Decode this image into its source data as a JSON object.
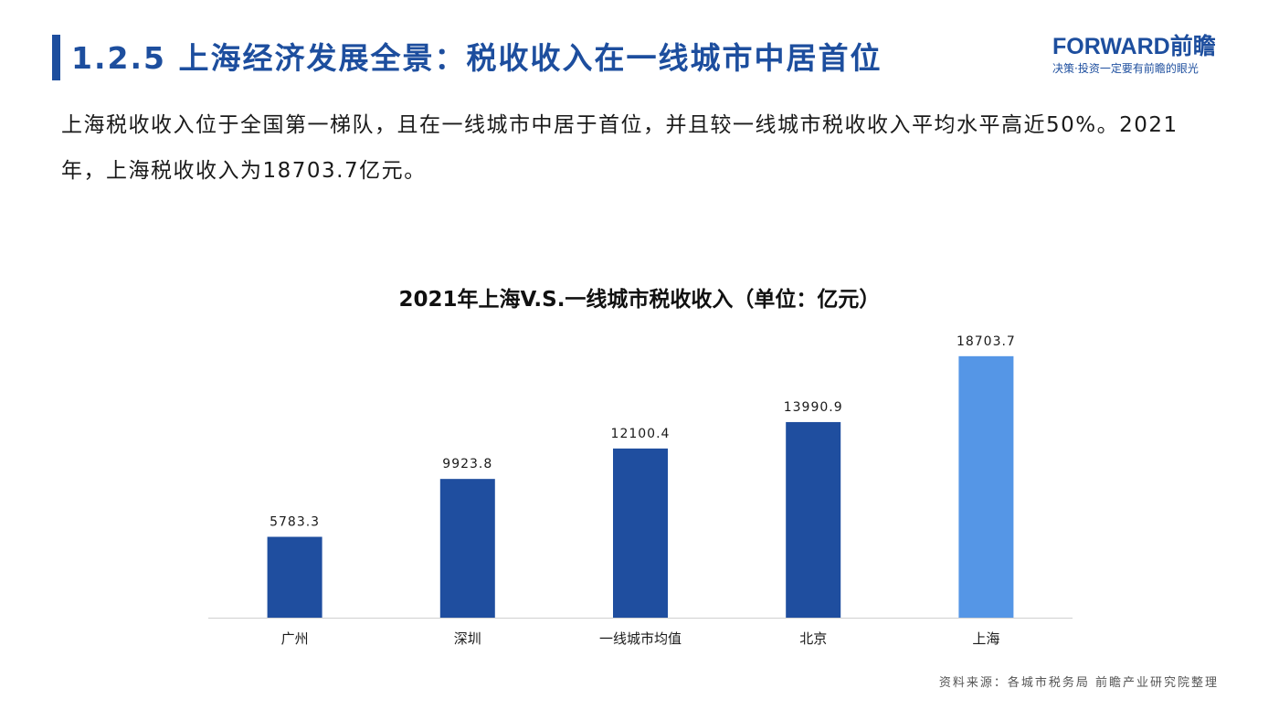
{
  "header": {
    "title": "1.2.5 上海经济发展全景：税收收入在一线城市中居首位"
  },
  "logo": {
    "main": "FORWARD前瞻",
    "tagline": "决策·投资一定要有前瞻的眼光"
  },
  "intro": {
    "text": "上海税收收入位于全国第一梯队，且在一线城市中居于首位，并且较一线城市税收收入平均水平高近50%。2021年，上海税收收入为18703.7亿元。"
  },
  "chart_data": {
    "type": "bar",
    "title": "2021年上海V.S.一线城市税收收入（单位：亿元）",
    "categories": [
      "广州",
      "深圳",
      "一线城市均值",
      "北京",
      "上海"
    ],
    "values": [
      5783.3,
      9923.8,
      12100.4,
      13990.9,
      18703.7
    ],
    "value_labels": [
      "5783.3",
      "9923.8",
      "12100.4",
      "13990.9",
      "18703.7"
    ],
    "colors": [
      "#1f4e9f",
      "#1f4e9f",
      "#1f4e9f",
      "#1f4e9f",
      "#5596e6"
    ],
    "ylim": [
      0,
      20000
    ],
    "xlabel": "",
    "ylabel": "",
    "grid": false,
    "legend": "none"
  },
  "source": {
    "text": "资料来源：各城市税务局 前瞻产业研究院整理"
  }
}
